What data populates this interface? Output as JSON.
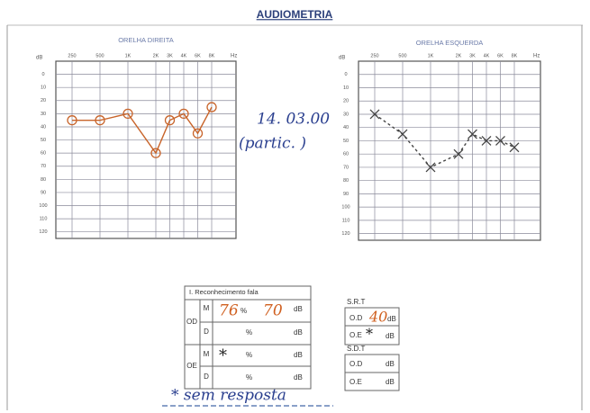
{
  "title": "AUDIOMETRIA",
  "audiograms": [
    {
      "title": "ORELHA DIREITA",
      "y_unit": "dB",
      "x_unit": "Hz",
      "frequencies": [
        "250",
        "500",
        "1K",
        "2K",
        "3K",
        "4K",
        "6K",
        "8K"
      ],
      "ylim": [
        -10,
        125
      ],
      "yticks": [
        0,
        10,
        20,
        30,
        40,
        50,
        60,
        70,
        80,
        90,
        100,
        110,
        120
      ],
      "values": [
        35,
        35,
        30,
        60,
        35,
        30,
        45,
        25
      ],
      "color": "#c8642a",
      "marker": "circle",
      "dashed": false
    },
    {
      "title": "ORELHA ESQUERDA",
      "y_unit": "dB",
      "x_unit": "Hz",
      "frequencies": [
        "250",
        "500",
        "1K",
        "2K",
        "3K",
        "4K",
        "6K",
        "8K"
      ],
      "ylim": [
        -10,
        125
      ],
      "yticks": [
        0,
        10,
        20,
        30,
        40,
        50,
        60,
        70,
        80,
        90,
        100,
        110,
        120
      ],
      "values": [
        30,
        45,
        70,
        60,
        45,
        50,
        50,
        55
      ],
      "color": "#444444",
      "marker": "x",
      "dashed": true
    }
  ],
  "notes": [
    "14. 03.00",
    "(partic. )"
  ],
  "speech": {
    "title": "I. Reconhecimento fala",
    "blocks": [
      {
        "ear": "OD",
        "rows": [
          {
            "label": "M",
            "score": "76",
            "score_unit": "%",
            "level": "70",
            "level_unit": "dB"
          },
          {
            "label": "D",
            "score_unit": "%",
            "level_unit": "dB"
          }
        ]
      },
      {
        "ear": "OE",
        "rows": [
          {
            "label": "M",
            "score": "*",
            "score_unit": "%",
            "level_unit": "dB"
          },
          {
            "label": "D",
            "score_unit": "%",
            "level_unit": "dB"
          }
        ]
      }
    ]
  },
  "srt": {
    "title": "S.R.T",
    "rows": [
      {
        "ear": "O.D",
        "value": "40",
        "unit": "dB"
      },
      {
        "ear": "O.E",
        "value": "*",
        "unit": "dB"
      }
    ]
  },
  "sdt": {
    "title": "S.D.T",
    "rows": [
      {
        "ear": "O.D",
        "unit": "dB"
      },
      {
        "ear": "O.E",
        "unit": "dB"
      }
    ]
  },
  "footnote": "* sem resposta"
}
